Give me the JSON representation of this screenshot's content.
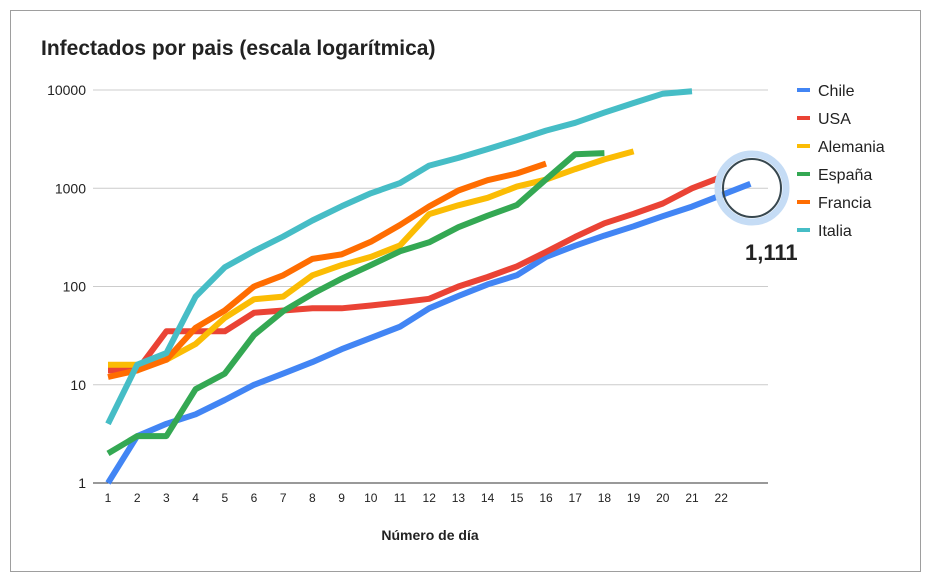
{
  "chart_data": {
    "type": "line",
    "title": "Infectados por pais (escala logarítmica)",
    "xlabel": "Número de día",
    "ylabel": "",
    "y_scale": "log",
    "ylim": [
      1,
      10000
    ],
    "xlim": [
      1,
      23
    ],
    "yticks": [
      1,
      10,
      100,
      1000,
      10000
    ],
    "ytick_labels": [
      "1",
      "10",
      "100",
      "1000",
      "10000"
    ],
    "xticks": [
      1,
      2,
      3,
      4,
      5,
      6,
      7,
      8,
      9,
      10,
      11,
      12,
      13,
      14,
      15,
      16,
      17,
      18,
      19,
      20,
      21,
      22
    ],
    "grid": true,
    "legend_position": "right",
    "series": [
      {
        "name": "Chile",
        "color": "#4285f4",
        "x": [
          1,
          2,
          3,
          4,
          5,
          6,
          7,
          8,
          9,
          10,
          11,
          12,
          13,
          14,
          15,
          16,
          17,
          18,
          19,
          20,
          21,
          22,
          23
        ],
        "values": [
          1,
          3,
          4,
          5,
          7,
          10,
          13,
          17,
          23,
          30,
          39,
          60,
          80,
          105,
          130,
          200,
          260,
          330,
          410,
          520,
          650,
          850,
          1111
        ]
      },
      {
        "name": "USA",
        "color": "#ea4335",
        "x": [
          1,
          2,
          3,
          4,
          5,
          6,
          7,
          8,
          9,
          10,
          11,
          12,
          13,
          14,
          15,
          16,
          17,
          18,
          19,
          20,
          21,
          22
        ],
        "values": [
          14,
          14,
          35,
          35,
          35,
          54,
          57,
          60,
          60,
          64,
          69,
          75,
          100,
          125,
          160,
          225,
          320,
          440,
          550,
          700,
          1000,
          1300
        ]
      },
      {
        "name": "Alemania",
        "color": "#fbbc04",
        "x": [
          1,
          2,
          3,
          4,
          5,
          6,
          7,
          8,
          9,
          10,
          11,
          12,
          13,
          14,
          15,
          16,
          17,
          18,
          19
        ],
        "values": [
          16,
          16,
          18,
          26,
          48,
          74,
          79,
          130,
          165,
          200,
          262,
          545,
          670,
          800,
          1040,
          1224,
          1565,
          1966,
          2369
        ]
      },
      {
        "name": "España",
        "color": "#34a853",
        "x": [
          1,
          2,
          3,
          4,
          5,
          6,
          7,
          8,
          9,
          10,
          11,
          12,
          13,
          14,
          15,
          16,
          17,
          18
        ],
        "values": [
          2,
          3,
          3,
          9,
          13,
          32,
          56,
          84,
          120,
          165,
          228,
          282,
          401,
          525,
          674,
          1231,
          2222,
          2277
        ]
      },
      {
        "name": "Francia",
        "color": "#ff6d01",
        "x": [
          1,
          2,
          3,
          4,
          5,
          6,
          7,
          8,
          9,
          10,
          11,
          12,
          13,
          14,
          15,
          16
        ],
        "values": [
          12,
          14,
          18,
          38,
          57,
          100,
          130,
          191,
          212,
          285,
          423,
          653,
          949,
          1209,
          1412,
          1784
        ]
      },
      {
        "name": "Italia",
        "color": "#46bdc6",
        "x": [
          1,
          2,
          3,
          4,
          5,
          6,
          7,
          8,
          9,
          10,
          11,
          12,
          13,
          14,
          15,
          16,
          17,
          18,
          19,
          20,
          21
        ],
        "values": [
          4,
          16,
          21,
          79,
          157,
          229,
          323,
          470,
          655,
          889,
          1128,
          1701,
          2036,
          2502,
          3089,
          3858,
          4636,
          5883,
          7375,
          9172,
          9700
        ]
      }
    ],
    "annotations": [
      {
        "text": "1,111",
        "series": "Chile",
        "x": 23,
        "y": 1111
      }
    ]
  }
}
